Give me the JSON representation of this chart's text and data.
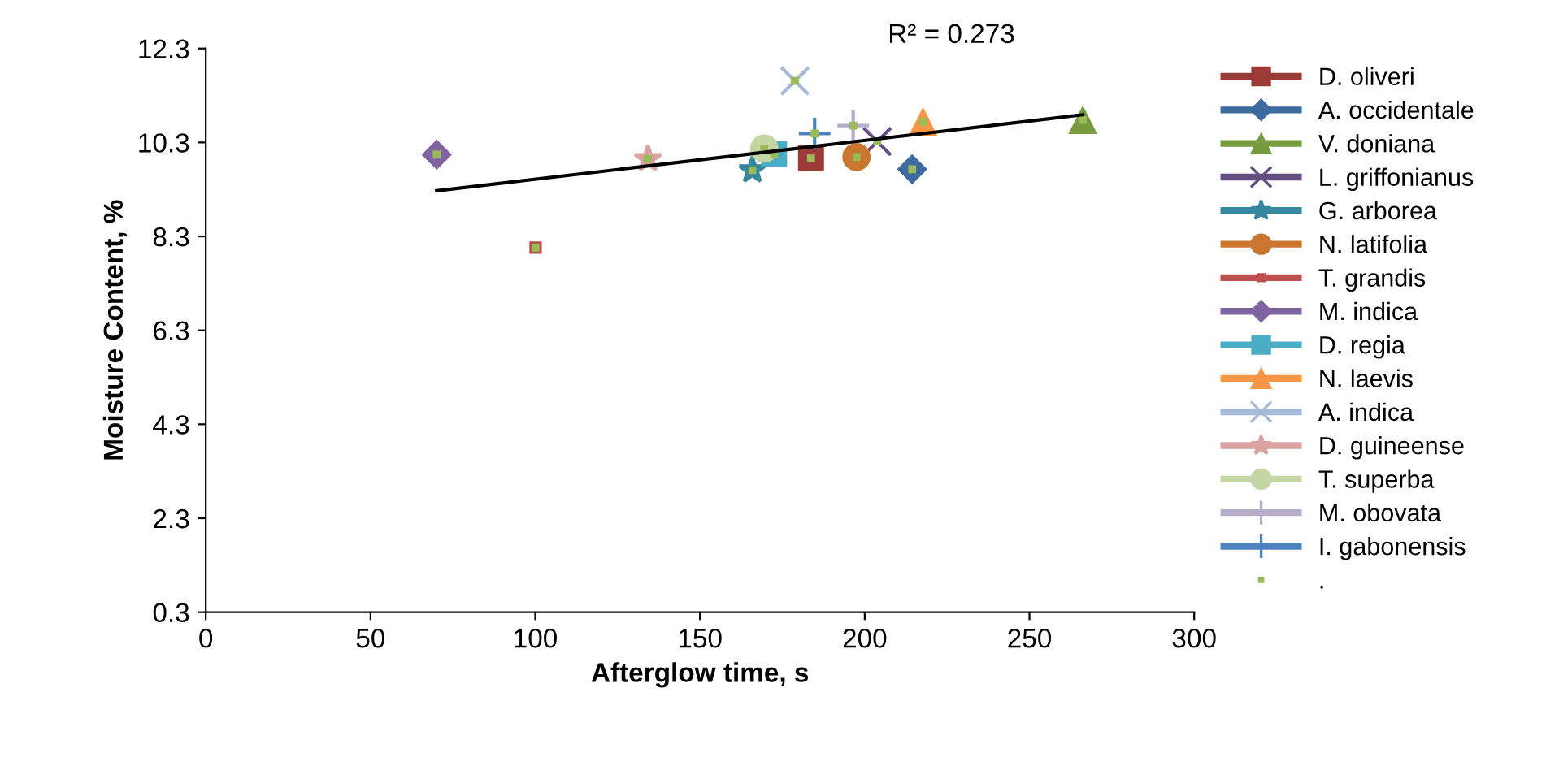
{
  "chart_data": {
    "type": "scatter",
    "xlabel": "Afterglow time, s",
    "ylabel": "Moisture Content, %",
    "xlim": [
      0,
      300
    ],
    "xticks": [
      0,
      50,
      100,
      150,
      200,
      250,
      300
    ],
    "ylim": [
      0.3,
      12.3
    ],
    "yticks": [
      0.3,
      2.3,
      4.3,
      6.3,
      8.3,
      10.3,
      12.3
    ],
    "grid": false,
    "legend": "right",
    "annotations": [
      "R² = 0.273"
    ],
    "series": [
      {
        "name": "D. oliveri",
        "color": "#9c3b38",
        "marker": "square",
        "x": [
          183.7
        ],
        "values": [
          9.96
        ]
      },
      {
        "name": "A. occidentale",
        "color": "#3d6a9f",
        "marker": "diamond",
        "x": [
          214.4
        ],
        "values": [
          9.73
        ]
      },
      {
        "name": "V. doniana",
        "color": "#779a3e",
        "marker": "triangle",
        "x": [
          266.2
        ],
        "values": [
          10.78
        ]
      },
      {
        "name": "L. griffonianus",
        "color": "#644e84",
        "marker": "cross",
        "x": [
          203.8
        ],
        "values": [
          10.32
        ]
      },
      {
        "name": "G. arborea",
        "color": "#35879e",
        "marker": "star",
        "x": [
          165.9
        ],
        "values": [
          9.71
        ]
      },
      {
        "name": "N. latifolia",
        "color": "#c87630",
        "marker": "circle",
        "x": [
          197.5
        ],
        "values": [
          9.99
        ]
      },
      {
        "name": "T. grandis",
        "color": "#c0504d",
        "marker": "square",
        "x": [
          100.1
        ],
        "values": [
          8.06
        ]
      },
      {
        "name": "M. indica",
        "color": "#8064a2",
        "marker": "diamond",
        "x": [
          70.1
        ],
        "values": [
          10.04
        ]
      },
      {
        "name": "D. regia",
        "color": "#4bacc6",
        "marker": "square",
        "x": [
          172.5
        ],
        "values": [
          10.05
        ]
      },
      {
        "name": "N. laevis",
        "color": "#f79646",
        "marker": "triangle",
        "x": [
          217.7
        ],
        "values": [
          10.74
        ]
      },
      {
        "name": "A. indica",
        "color": "#a5b9d9",
        "marker": "cross",
        "x": [
          178.8
        ],
        "values": [
          11.61
        ]
      },
      {
        "name": "D. guineense",
        "color": "#d9a3a2",
        "marker": "star",
        "x": [
          134.2
        ],
        "values": [
          9.95
        ]
      },
      {
        "name": "T. superba",
        "color": "#c3d6a4",
        "marker": "circle",
        "x": [
          169.5
        ],
        "values": [
          10.17
        ]
      },
      {
        "name": "M. obovata",
        "color": "#b7acc9",
        "marker": "plus",
        "x": [
          196.5
        ],
        "values": [
          10.66
        ]
      },
      {
        "name": "I. gabonensis",
        "color": "#4f81bd",
        "marker": "plus",
        "x": [
          184.8
        ],
        "values": [
          10.49
        ]
      },
      {
        "name": ".",
        "color": "#9bbb59",
        "marker": "square",
        "x": [
          183.7,
          214.4,
          266.2,
          203.8,
          165.9,
          197.5,
          100.1,
          70.1,
          172.5,
          217.7,
          178.8,
          134.2,
          169.5,
          196.5,
          184.8
        ],
        "values": [
          9.96,
          9.73,
          10.78,
          10.32,
          9.71,
          9.99,
          8.06,
          10.04,
          10.05,
          10.74,
          11.61,
          9.95,
          10.17,
          10.66,
          10.49
        ]
      },
      {
        "type": "line",
        "color": "#000000",
        "marker": "none",
        "line_style": "solid",
        "x": [
          70.1,
          266.2
        ],
        "values": [
          9.27,
          10.89
        ]
      }
    ]
  }
}
